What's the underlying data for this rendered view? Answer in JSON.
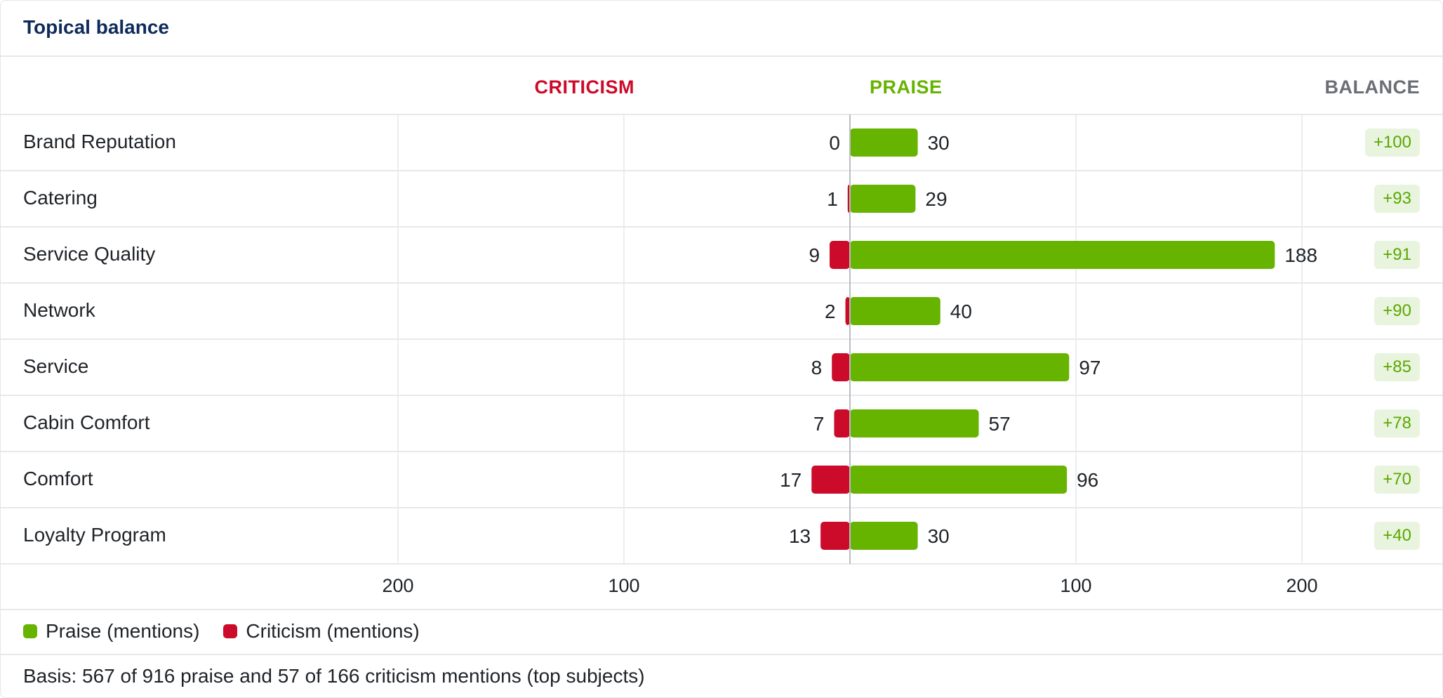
{
  "widget": {
    "title": "Topical balance",
    "footnote": "Basis: 567 of 916 praise and 57 of 166 criticism mentions (top subjects)"
  },
  "colors": {
    "praise": "#66b300",
    "criticism": "#cc0a2a",
    "badge_bg": "#e9f4de",
    "badge_text": "#5aa800"
  },
  "chart_data": {
    "type": "bar",
    "orientation": "horizontal-diverging",
    "headers": {
      "left": "CRITICISM",
      "right": "PRAISE",
      "balance": "BALANCE"
    },
    "categories": [
      "Brand Reputation",
      "Catering",
      "Service Quality",
      "Network",
      "Service",
      "Cabin Comfort",
      "Comfort",
      "Loyalty Program"
    ],
    "series": [
      {
        "name": "Praise (mentions)",
        "values": [
          30,
          29,
          188,
          40,
          97,
          57,
          96,
          30
        ]
      },
      {
        "name": "Criticism (mentions)",
        "values": [
          0,
          1,
          9,
          2,
          8,
          7,
          17,
          13
        ]
      }
    ],
    "balance": [
      "+100",
      "+93",
      "+91",
      "+90",
      "+85",
      "+78",
      "+70",
      "+40"
    ],
    "xlim": [
      -200,
      200
    ],
    "x_ticks": [
      "200",
      "100",
      "100",
      "200"
    ],
    "grid": true,
    "legend_position": "bottom-left"
  }
}
